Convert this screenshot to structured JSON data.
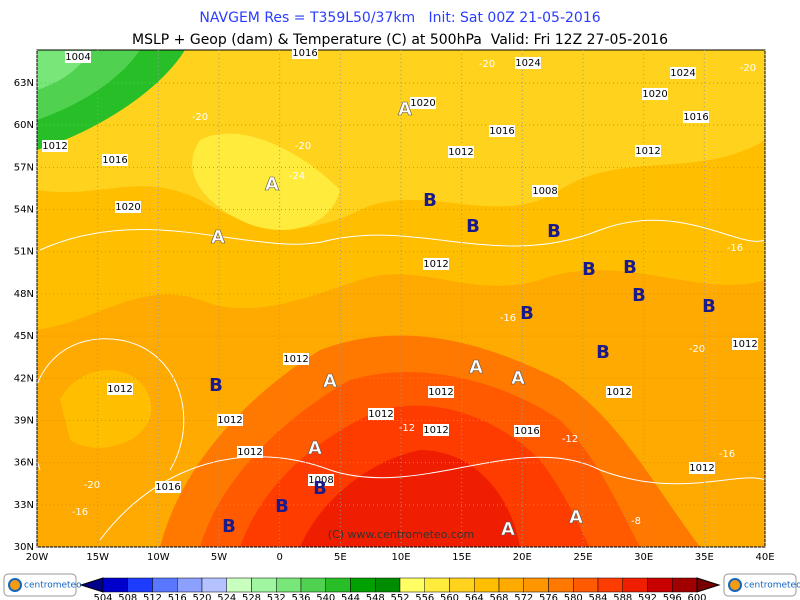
{
  "header": {
    "line1": "NAVGEM Res = T359L50/37km   Init: Sat 00Z 21-05-2016",
    "line2": "MSLP + Geop (dam) & Temperature (C) at 500hPa  Valid: Fri 12Z 27-05-2016"
  },
  "lat_labels": [
    "63N",
    "60N",
    "57N",
    "54N",
    "51N",
    "48N",
    "45N",
    "42N",
    "39N",
    "36N",
    "33N",
    "30N"
  ],
  "lon_labels": [
    "20W",
    "15W",
    "10W",
    "5W",
    "0",
    "5E",
    "10E",
    "15E",
    "20E",
    "25E",
    "30E",
    "35E",
    "40E"
  ],
  "colorbar": {
    "levels": [
      504,
      508,
      512,
      516,
      520,
      524,
      528,
      532,
      536,
      540,
      544,
      548,
      552,
      556,
      560,
      564,
      568,
      572,
      576,
      580,
      584,
      588,
      592,
      596,
      600
    ],
    "colors": [
      "#00008b",
      "#0000cd",
      "#1e3cff",
      "#5a78ff",
      "#8ca0ff",
      "#b4c3ff",
      "#c8ffbe",
      "#a0f5a0",
      "#78e678",
      "#50d250",
      "#28be28",
      "#00a000",
      "#008c00",
      "#ffff64",
      "#ffeb3c",
      "#ffd21e",
      "#ffbe00",
      "#ffaa00",
      "#ff9600",
      "#ff7800",
      "#ff5a00",
      "#ff3c00",
      "#f01e00",
      "#c80000",
      "#a00000",
      "#780000"
    ]
  },
  "isobar_labels": [
    "1004",
    "1012",
    "1016",
    "1020",
    "1016",
    "1024",
    "1020",
    "1016",
    "1012",
    "1008",
    "1024",
    "1020",
    "1016",
    "1012",
    "1012",
    "1012",
    "1012",
    "1012",
    "1012",
    "1012",
    "1012",
    "1012",
    "1016",
    "1012",
    "1012",
    "1016",
    "1008",
    "1012"
  ],
  "temperature_labels": [
    "-20",
    "-20",
    "-20",
    "-24",
    "-20",
    "-16",
    "-16",
    "-20",
    "-12",
    "-12",
    "-16",
    "-20",
    "-16",
    "-8"
  ],
  "high_markers": [
    "A",
    "A",
    "A",
    "A",
    "A",
    "A",
    "A",
    "A",
    "A"
  ],
  "low_markers": [
    "B",
    "B",
    "B",
    "B",
    "B",
    "B",
    "B",
    "B",
    "B",
    "B",
    "B",
    "B",
    "B"
  ],
  "watermark": "(C) www.centrometeo.com",
  "logos": [
    "centrometeo",
    "centrometeo"
  ]
}
